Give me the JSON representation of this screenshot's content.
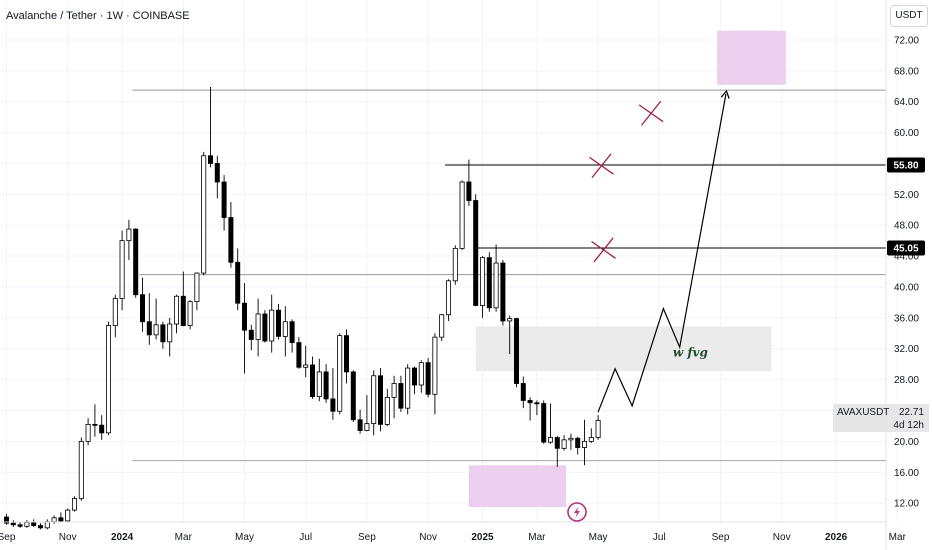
{
  "header": {
    "title": "Avalanche / Tether · 1W · COINBASE",
    "currency": "USDT"
  },
  "annotations": {
    "fvg_label": "w fvg"
  },
  "price_badge": {
    "symbol": "AVAXUSDT",
    "price": "22.71",
    "countdown": "4d 12h"
  },
  "levels": [
    "55.80",
    "45.05"
  ],
  "colors": {
    "up": "#ffffff",
    "down": "#000000",
    "level_line": "#000000",
    "pink_zone": "#e9c6ec",
    "gray_zone": "#ebebeb",
    "x_mark": "#a0204a",
    "fvg_text": "#1f4a2c"
  },
  "icons": [
    "lightning-icon"
  ],
  "chart_data": {
    "type": "candlestick",
    "title": "Avalanche / Tether · 1W · COINBASE",
    "y_ticks": [
      12,
      16,
      20,
      24,
      28,
      32,
      36,
      40,
      44,
      48,
      52,
      56,
      60,
      64,
      68,
      72
    ],
    "x_ticks": [
      "Sep",
      "Nov",
      "2024",
      "Mar",
      "May",
      "Jul",
      "Sep",
      "Nov",
      "2025",
      "Mar",
      "May",
      "Jul",
      "Sep",
      "Nov",
      "2026",
      "Mar"
    ],
    "x_tick_positions": [
      0,
      9,
      17,
      26,
      35,
      44,
      53,
      62,
      70,
      78,
      87,
      96,
      105,
      114,
      122,
      131
    ],
    "ylim": [
      8,
      74
    ],
    "xlim": [
      -3,
      137
    ],
    "horizontal_levels": [
      65.5,
      55.8,
      45.05,
      41.6,
      17.5
    ],
    "highlighted_levels": [
      55.8,
      45.05
    ],
    "candles": [
      [
        10.2,
        10.6,
        9.2,
        9.4
      ],
      [
        9.4,
        9.8,
        8.9,
        9.2
      ],
      [
        9.2,
        9.6,
        8.8,
        9.0
      ],
      [
        9.0,
        9.8,
        8.8,
        9.5
      ],
      [
        9.5,
        9.9,
        8.9,
        9.1
      ],
      [
        9.1,
        9.4,
        8.6,
        8.8
      ],
      [
        8.8,
        9.9,
        8.6,
        9.6
      ],
      [
        9.6,
        10.4,
        9.3,
        10.1
      ],
      [
        10.1,
        10.8,
        9.5,
        9.7
      ],
      [
        9.7,
        11.3,
        9.5,
        11.1
      ],
      [
        11.1,
        12.9,
        10.9,
        12.6
      ],
      [
        12.6,
        20.5,
        12.3,
        20.0
      ],
      [
        20.0,
        23.0,
        19.5,
        22.2
      ],
      [
        22.2,
        24.8,
        20.6,
        22.1
      ],
      [
        22.1,
        23.4,
        20.2,
        21.1
      ],
      [
        21.1,
        35.5,
        20.8,
        35.0
      ],
      [
        35.0,
        39.0,
        33.5,
        38.5
      ],
      [
        38.5,
        47.3,
        37.0,
        46.0
      ],
      [
        46.0,
        48.7,
        43.5,
        47.5
      ],
      [
        47.5,
        47.6,
        38.6,
        39.0
      ],
      [
        39.0,
        41.2,
        34.2,
        35.5
      ],
      [
        35.5,
        39.2,
        32.5,
        33.8
      ],
      [
        33.8,
        38.5,
        33.2,
        35.1
      ],
      [
        35.1,
        35.5,
        32.0,
        32.9
      ],
      [
        32.9,
        36.0,
        31.0,
        35.2
      ],
      [
        35.2,
        39.0,
        34.0,
        38.8
      ],
      [
        38.8,
        42.0,
        34.9,
        35.0
      ],
      [
        35.0,
        38.3,
        34.5,
        38.1
      ],
      [
        38.1,
        41.9,
        37.0,
        41.8
      ],
      [
        41.8,
        57.5,
        41.5,
        57.0
      ],
      [
        57.0,
        65.9,
        55.5,
        56.0
      ],
      [
        56.0,
        57.0,
        51.5,
        53.6
      ],
      [
        53.6,
        54.5,
        47.3,
        49.0
      ],
      [
        49.0,
        51.0,
        42.5,
        43.2
      ],
      [
        43.2,
        45.0,
        37.0,
        37.9
      ],
      [
        37.9,
        40.5,
        28.8,
        34.4
      ],
      [
        34.4,
        35.1,
        31.8,
        33.2
      ],
      [
        33.2,
        38.5,
        31.0,
        36.5
      ],
      [
        36.5,
        37.0,
        32.8,
        33.0
      ],
      [
        33.0,
        39.0,
        31.5,
        37.0
      ],
      [
        37.0,
        37.8,
        33.2,
        33.6
      ],
      [
        33.6,
        37.5,
        31.0,
        35.5
      ],
      [
        35.5,
        35.8,
        31.5,
        32.8
      ],
      [
        32.8,
        33.5,
        29.4,
        29.6
      ],
      [
        29.6,
        32.4,
        28.3,
        29.9
      ],
      [
        29.9,
        31.0,
        25.5,
        25.8
      ],
      [
        25.8,
        30.7,
        25.2,
        29.0
      ],
      [
        29.0,
        30.0,
        25.0,
        25.5
      ],
      [
        25.5,
        29.5,
        22.8,
        23.9
      ],
      [
        23.9,
        34.0,
        23.5,
        33.7
      ],
      [
        33.7,
        34.5,
        27.5,
        29.0
      ],
      [
        29.0,
        29.2,
        22.5,
        22.8
      ],
      [
        22.8,
        24.1,
        21.0,
        21.4
      ],
      [
        21.4,
        26.0,
        21.3,
        22.3
      ],
      [
        22.3,
        29.2,
        20.8,
        28.5
      ],
      [
        28.5,
        29.5,
        21.3,
        22.2
      ],
      [
        22.2,
        26.8,
        22.0,
        25.7
      ],
      [
        25.7,
        28.5,
        23.0,
        27.5
      ],
      [
        27.5,
        28.5,
        23.8,
        24.3
      ],
      [
        24.3,
        30.0,
        23.5,
        29.5
      ],
      [
        29.5,
        29.7,
        26.1,
        27.3
      ],
      [
        27.3,
        30.5,
        26.3,
        30.2
      ],
      [
        30.2,
        30.8,
        25.7,
        26.1
      ],
      [
        26.1,
        34.0,
        23.5,
        33.5
      ],
      [
        33.5,
        36.5,
        33.0,
        36.4
      ],
      [
        36.4,
        41.0,
        35.6,
        40.8
      ],
      [
        40.8,
        45.4,
        40.3,
        45.0
      ],
      [
        45.0,
        53.8,
        44.8,
        53.6
      ],
      [
        53.6,
        56.5,
        50.5,
        51.2
      ],
      [
        51.2,
        52.0,
        37.5,
        37.6
      ],
      [
        37.6,
        44.0,
        36.0,
        43.8
      ],
      [
        43.8,
        44.5,
        36.8,
        37.3
      ],
      [
        37.3,
        45.5,
        36.8,
        43.1
      ],
      [
        43.1,
        43.5,
        35.0,
        35.6
      ],
      [
        35.6,
        36.3,
        31.3,
        35.9
      ],
      [
        35.9,
        36.0,
        27.0,
        27.5
      ],
      [
        27.5,
        28.4,
        24.3,
        25.3
      ],
      [
        25.3,
        25.7,
        22.7,
        25.0
      ],
      [
        25.0,
        25.3,
        23.4,
        24.9
      ],
      [
        24.9,
        25.3,
        19.7,
        19.9
      ],
      [
        19.9,
        24.9,
        19.7,
        20.5
      ],
      [
        20.5,
        20.7,
        16.7,
        19.1
      ],
      [
        19.1,
        20.8,
        18.8,
        20.2
      ],
      [
        20.2,
        21.0,
        18.9,
        20.4
      ],
      [
        20.4,
        20.6,
        18.3,
        19.2
      ],
      [
        19.2,
        22.8,
        16.9,
        20.0
      ],
      [
        20.0,
        21.7,
        19.8,
        20.5
      ],
      [
        20.5,
        23.4,
        20.2,
        22.71
      ]
    ],
    "pink_zones": [
      {
        "x1": 68.0,
        "x2": 82.3,
        "y1": 11.5,
        "y2": 16.9
      },
      {
        "x1": 104.5,
        "x2": 114.6,
        "y1": 66.2,
        "y2": 73.2
      }
    ],
    "gray_zone": {
      "x1": 69.0,
      "x2": 112.5,
      "y1": 29.1,
      "y2": 34.9
    },
    "projection_path": [
      [
        87,
        23.8
      ],
      [
        89.5,
        29.4
      ],
      [
        92.0,
        24.6
      ],
      [
        96.6,
        37.2
      ],
      [
        99.0,
        32.2
      ],
      [
        105.8,
        65.0
      ]
    ],
    "x_marks": [
      [
        94.8,
        62.5
      ],
      [
        87.5,
        55.7
      ],
      [
        87.8,
        44.8
      ]
    ],
    "fvg_label_pos": [
      98,
      31.5
    ]
  }
}
